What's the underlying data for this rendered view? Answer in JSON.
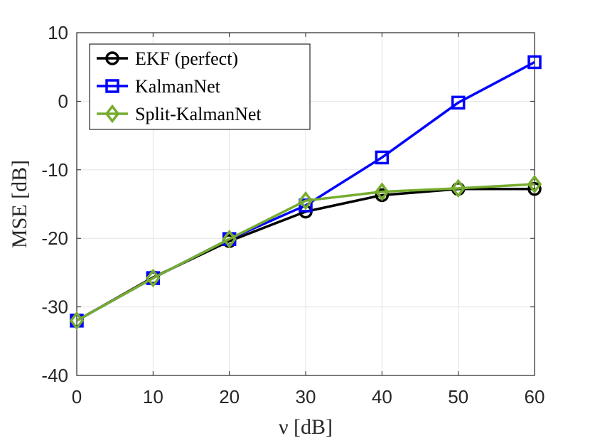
{
  "chart_data": {
    "type": "line",
    "xlabel": "ν [dB]",
    "ylabel": "MSE [dB]",
    "xlim": [
      0,
      60
    ],
    "ylim": [
      -40,
      10
    ],
    "xticks": [
      "0",
      "10",
      "20",
      "30",
      "40",
      "50",
      "60"
    ],
    "yticks": [
      "10",
      "0",
      "-10",
      "-20",
      "-30",
      "-40"
    ],
    "grid": true,
    "legend_position": "top-left",
    "x": [
      0,
      10,
      20,
      30,
      40,
      50,
      60
    ],
    "series": [
      {
        "name": "EKF (perfect)",
        "marker": "circle",
        "color": "#000000",
        "values": [
          -32.0,
          -25.7,
          -20.4,
          -16.1,
          -13.7,
          -12.8,
          -12.8
        ]
      },
      {
        "name": "KalmanNet",
        "marker": "square",
        "color": "#0000ff",
        "values": [
          -32.0,
          -25.8,
          -20.1,
          -15.2,
          -8.2,
          -0.2,
          5.7
        ]
      },
      {
        "name": "Split-KalmanNet",
        "marker": "diamond",
        "color": "#77ac30",
        "values": [
          -32.0,
          -25.8,
          -20.1,
          -14.5,
          -13.2,
          -12.7,
          -12.1
        ]
      }
    ]
  }
}
